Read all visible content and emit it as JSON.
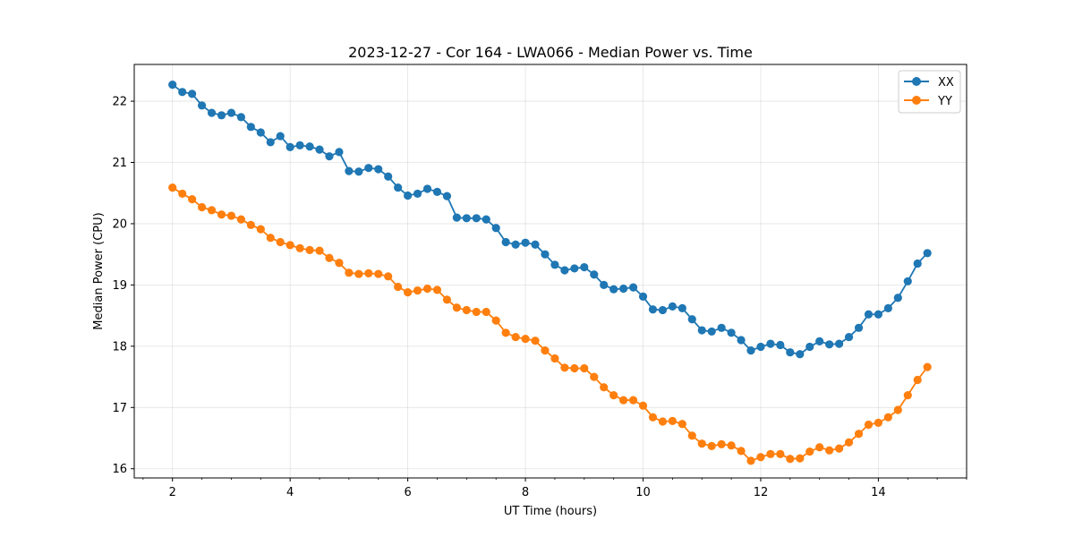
{
  "chart_data": {
    "type": "line",
    "title": "2023-12-27 - Cor 164 - LWA066 - Median Power vs. Time",
    "xlabel": "UT Time (hours)",
    "ylabel": "Median Power (CPU)",
    "xlim": [
      1.35,
      15.5
    ],
    "ylim": [
      15.85,
      22.6
    ],
    "xticks": [
      2,
      4,
      6,
      8,
      10,
      12,
      14
    ],
    "yticks": [
      16,
      17,
      18,
      19,
      20,
      21,
      22
    ],
    "grid": true,
    "legend_position": "top-right",
    "series": [
      {
        "name": "XX",
        "color": "#1f77b4",
        "x": [
          2.0,
          2.1667,
          2.3333,
          2.5,
          2.6667,
          2.8333,
          3.0,
          3.1667,
          3.3333,
          3.5,
          3.6667,
          3.8333,
          4.0,
          4.1667,
          4.3333,
          4.5,
          4.6667,
          4.8333,
          5.0,
          5.1667,
          5.3333,
          5.5,
          5.6667,
          5.8333,
          6.0,
          6.1667,
          6.3333,
          6.5,
          6.6667,
          6.8333,
          7.0,
          7.1667,
          7.3333,
          7.5,
          7.6667,
          7.8333,
          8.0,
          8.1667,
          8.3333,
          8.5,
          8.6667,
          8.8333,
          9.0,
          9.1667,
          9.3333,
          9.5,
          9.6667,
          9.8333,
          10.0,
          10.1667,
          10.3333,
          10.5,
          10.6667,
          10.8333,
          11.0,
          11.1667,
          11.3333,
          11.5,
          11.6667,
          11.8333,
          12.0,
          12.1667,
          12.3333,
          12.5,
          12.6667,
          12.8333,
          13.0,
          13.1667,
          13.3333,
          13.5,
          13.6667,
          13.8333,
          14.0,
          14.1667,
          14.3333,
          14.5,
          14.6667,
          14.8333
        ],
        "y": [
          22.27,
          22.15,
          22.12,
          21.93,
          21.81,
          21.77,
          21.81,
          21.74,
          21.58,
          21.49,
          21.33,
          21.43,
          21.25,
          21.28,
          21.26,
          21.21,
          21.1,
          21.17,
          20.86,
          20.85,
          20.91,
          20.89,
          20.77,
          20.59,
          20.46,
          20.49,
          20.57,
          20.52,
          20.45,
          20.1,
          20.09,
          20.09,
          20.07,
          19.93,
          19.7,
          19.66,
          19.69,
          19.66,
          19.5,
          19.33,
          19.24,
          19.27,
          19.29,
          19.17,
          19.0,
          18.93,
          18.94,
          18.96,
          18.81,
          18.6,
          18.59,
          18.65,
          18.62,
          18.44,
          18.26,
          18.24,
          18.3,
          18.22,
          18.1,
          17.93,
          17.99,
          18.04,
          18.02,
          17.9,
          17.87,
          17.99,
          18.08,
          18.03,
          18.04,
          18.15,
          18.3,
          18.52,
          18.52,
          18.62,
          18.79,
          19.06,
          19.35,
          19.52
        ]
      },
      {
        "name": "YY",
        "color": "#ff7f0e",
        "x": [
          2.0,
          2.1667,
          2.3333,
          2.5,
          2.6667,
          2.8333,
          3.0,
          3.1667,
          3.3333,
          3.5,
          3.6667,
          3.8333,
          4.0,
          4.1667,
          4.3333,
          4.5,
          4.6667,
          4.8333,
          5.0,
          5.1667,
          5.3333,
          5.5,
          5.6667,
          5.8333,
          6.0,
          6.1667,
          6.3333,
          6.5,
          6.6667,
          6.8333,
          7.0,
          7.1667,
          7.3333,
          7.5,
          7.6667,
          7.8333,
          8.0,
          8.1667,
          8.3333,
          8.5,
          8.6667,
          8.8333,
          9.0,
          9.1667,
          9.3333,
          9.5,
          9.6667,
          9.8333,
          10.0,
          10.1667,
          10.3333,
          10.5,
          10.6667,
          10.8333,
          11.0,
          11.1667,
          11.3333,
          11.5,
          11.6667,
          11.8333,
          12.0,
          12.1667,
          12.3333,
          12.5,
          12.6667,
          12.8333,
          13.0,
          13.1667,
          13.3333,
          13.5,
          13.6667,
          13.8333,
          14.0,
          14.1667,
          14.3333,
          14.5,
          14.6667,
          14.8333
        ],
        "y": [
          20.59,
          20.49,
          20.4,
          20.27,
          20.22,
          20.15,
          20.13,
          20.07,
          19.98,
          19.91,
          19.77,
          19.7,
          19.65,
          19.6,
          19.57,
          19.56,
          19.44,
          19.36,
          19.2,
          19.18,
          19.19,
          19.18,
          19.14,
          18.97,
          18.88,
          18.91,
          18.94,
          18.92,
          18.76,
          18.63,
          18.59,
          18.56,
          18.56,
          18.42,
          18.22,
          18.15,
          18.12,
          18.09,
          17.93,
          17.8,
          17.65,
          17.64,
          17.64,
          17.5,
          17.33,
          17.2,
          17.12,
          17.12,
          17.03,
          16.84,
          16.77,
          16.78,
          16.73,
          16.54,
          16.41,
          16.37,
          16.4,
          16.38,
          16.29,
          16.13,
          16.19,
          16.24,
          16.24,
          16.16,
          16.17,
          16.28,
          16.35,
          16.3,
          16.33,
          16.43,
          16.57,
          16.72,
          16.75,
          16.84,
          16.96,
          17.2,
          17.45,
          17.66
        ]
      }
    ]
  }
}
